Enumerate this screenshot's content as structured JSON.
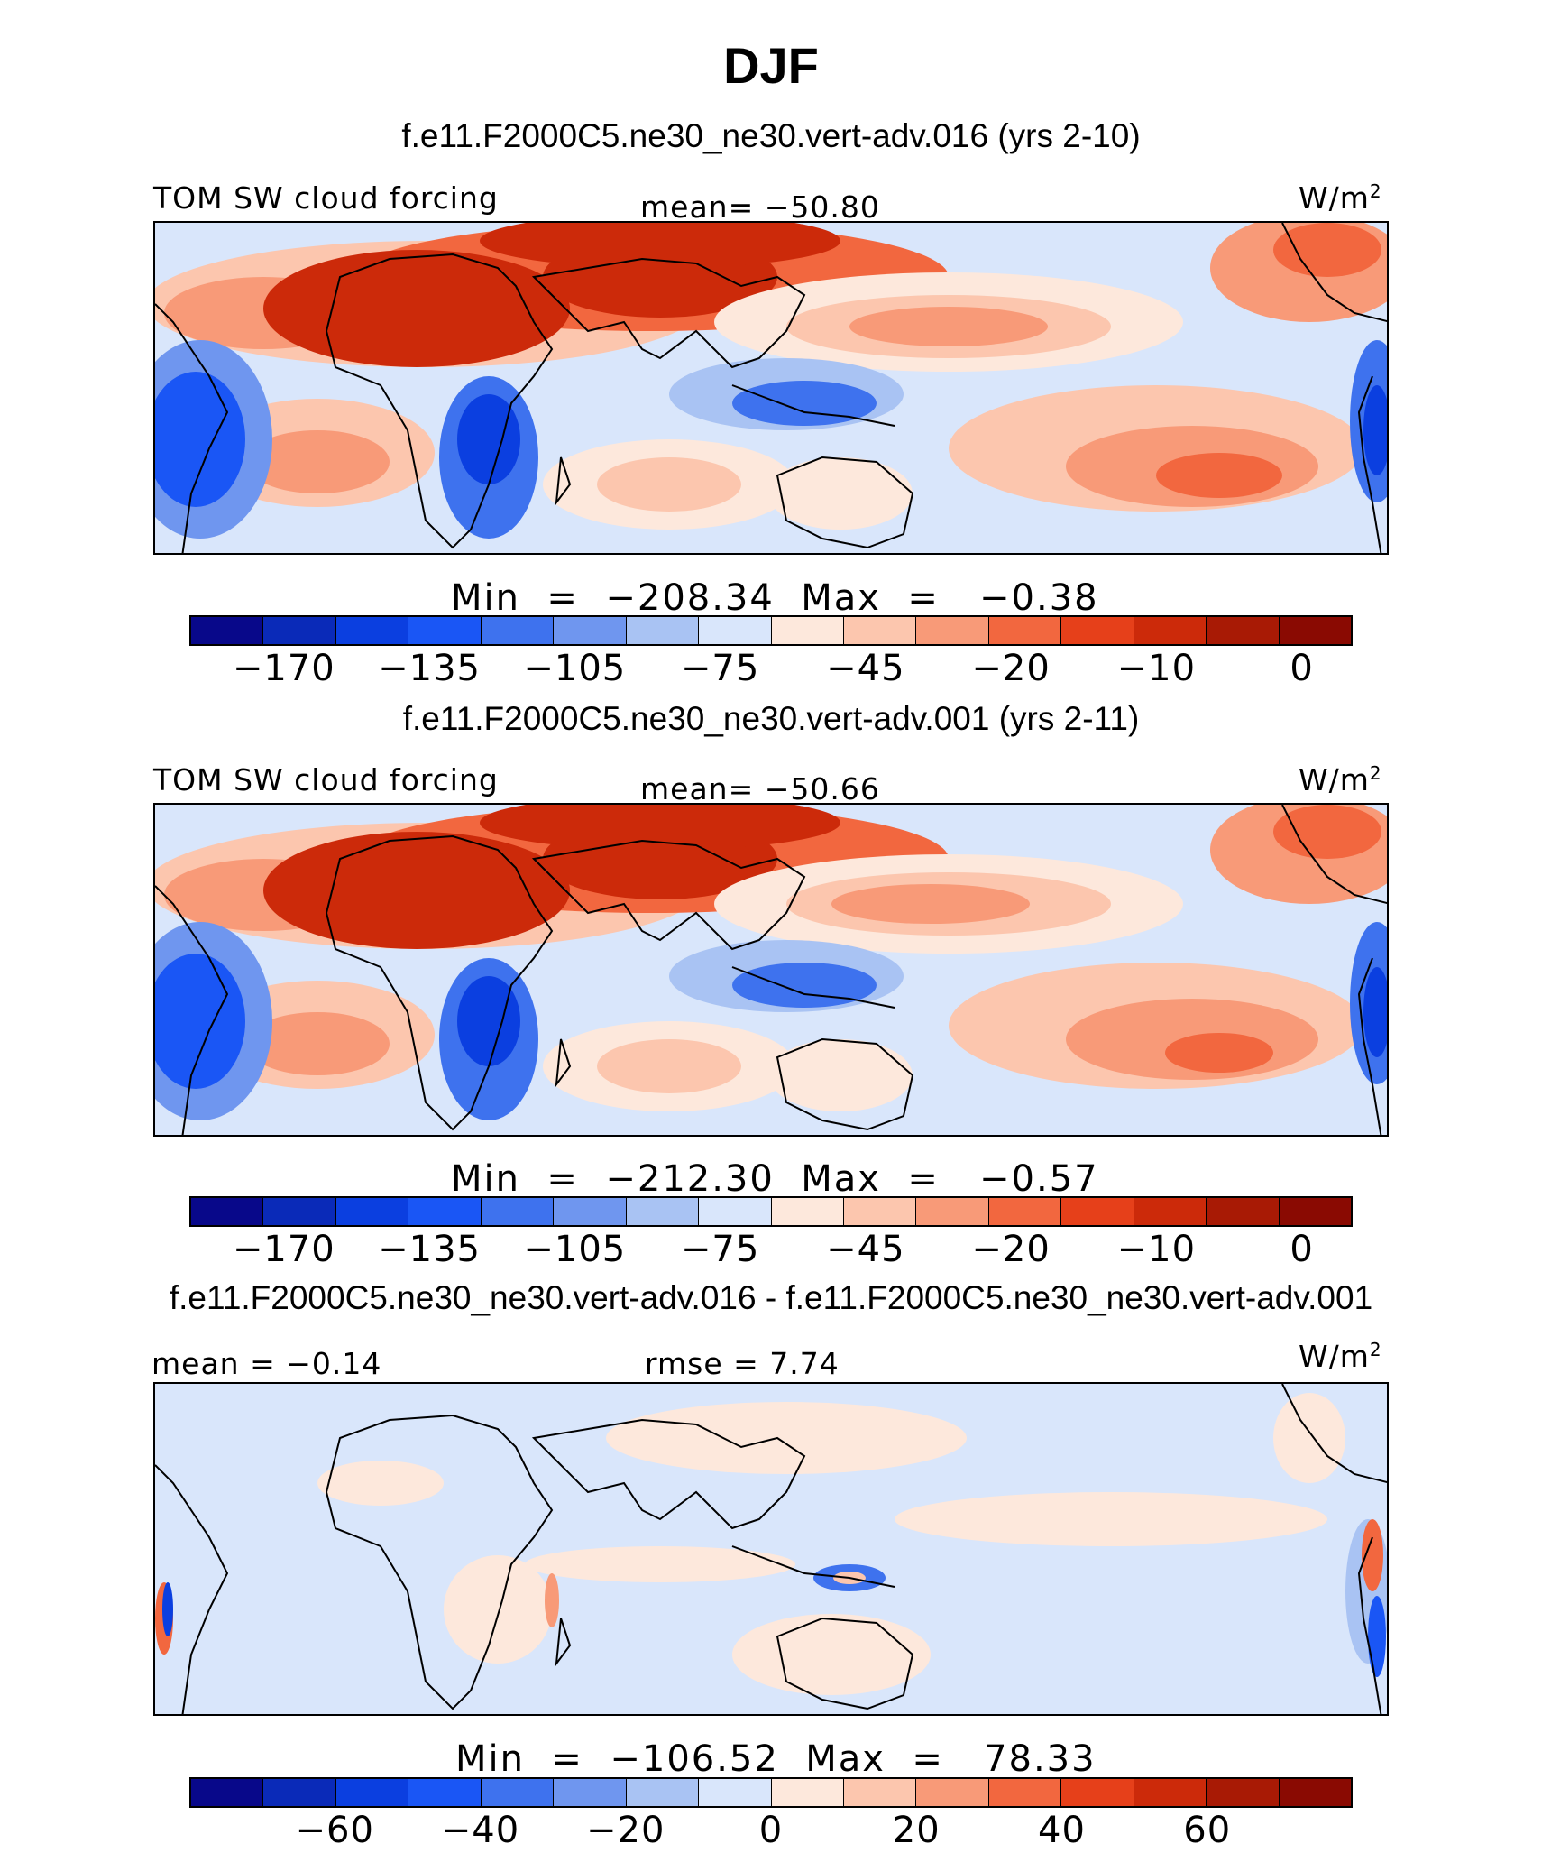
{
  "title": "DJF",
  "unit": "W/m",
  "unit_sup": "2",
  "variable": "TOM SW cloud forcing",
  "panels": [
    {
      "case_title": "f.e11.F2000C5.ne30_ne30.vert-adv.016 (yrs 2-10)",
      "left_label": "TOM SW cloud forcing",
      "center_label": "mean=  −50.80",
      "min_max": "Min  =  −208.34  Max  =   −0.38",
      "min": -208.34,
      "max": -0.38,
      "mean": -50.8,
      "tick_labels": [
        "−170",
        "−135",
        "−105",
        "−75",
        "−45",
        "−20",
        "−10",
        "0"
      ]
    },
    {
      "case_title": "f.e11.F2000C5.ne30_ne30.vert-adv.001 (yrs 2-11)",
      "left_label": "TOM SW cloud forcing",
      "center_label": "mean=  −50.66",
      "min_max": "Min  =  −212.30  Max  =   −0.57",
      "min": -212.3,
      "max": -0.57,
      "mean": -50.66,
      "tick_labels": [
        "−170",
        "−135",
        "−105",
        "−75",
        "−45",
        "−20",
        "−10",
        "0"
      ]
    },
    {
      "case_title": "f.e11.F2000C5.ne30_ne30.vert-adv.016 - f.e11.F2000C5.ne30_ne30.vert-adv.001",
      "left_label": "mean  =   −0.14",
      "center_label": "rmse  =    7.74",
      "min_max": "Min  =  −106.52  Max  =   78.33",
      "min": -106.52,
      "max": 78.33,
      "mean": -0.14,
      "rmse": 7.74,
      "tick_labels": [
        "−60",
        "−40",
        "−20",
        "0",
        "20",
        "40",
        "60"
      ]
    }
  ],
  "colorbar_colors": [
    "#08088a",
    "#0a2ab8",
    "#0b3fe0",
    "#1a56f5",
    "#3e72ee",
    "#6f96ef",
    "#a9c3f3",
    "#d9e6fb",
    "#fde8dc",
    "#fcc6ae",
    "#f89a78",
    "#f2673f",
    "#e6401a",
    "#cc2a0a",
    "#a81a05",
    "#8a0a02"
  ],
  "chart_data": {
    "type": "heatmap",
    "map": "global lat-lon contour maps, DJF season",
    "panels": [
      {
        "name": "f.e11.F2000C5.ne30_ne30.vert-adv.016 (yrs 2-10)",
        "mean": -50.8,
        "min": -208.34,
        "max": -0.38
      },
      {
        "name": "f.e11.F2000C5.ne30_ne30.vert-adv.001 (yrs 2-11)",
        "mean": -50.66,
        "min": -212.3,
        "max": -0.57
      },
      {
        "name": "difference",
        "mean": -0.14,
        "rmse": 7.74,
        "min": -106.52,
        "max": 78.33
      }
    ],
    "colorbar_ticks_abs": [
      -170,
      -135,
      -105,
      -75,
      -45,
      -20,
      -10,
      0
    ],
    "colorbar_ticks_diff": [
      -60,
      -40,
      -20,
      0,
      20,
      40,
      60
    ]
  }
}
